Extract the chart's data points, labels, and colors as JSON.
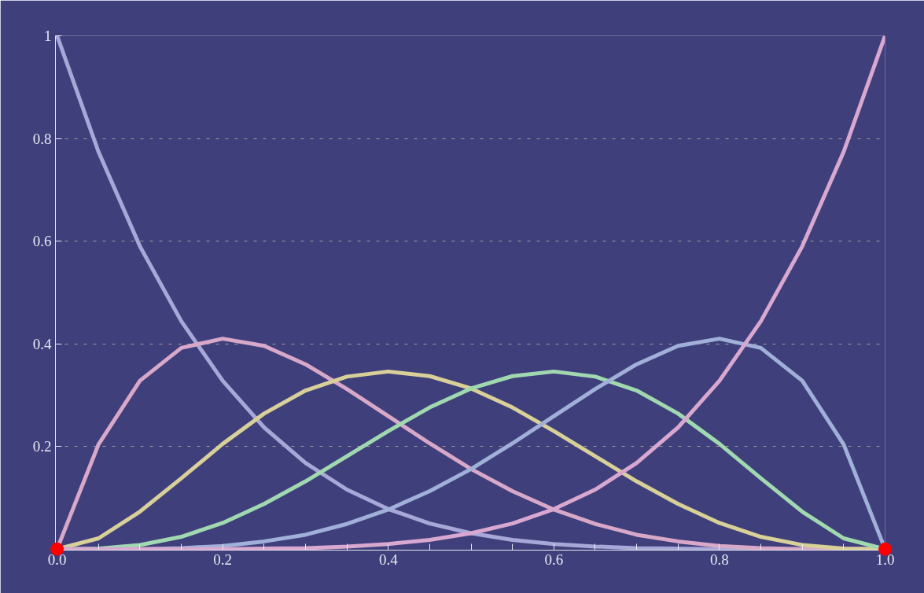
{
  "chart_data": {
    "type": "line",
    "x": [
      0,
      0.05,
      0.1,
      0.15,
      0.2,
      0.25,
      0.3,
      0.35,
      0.4,
      0.45,
      0.5,
      0.55,
      0.6,
      0.65,
      0.7,
      0.75,
      0.8,
      0.85,
      0.9,
      0.95,
      1
    ],
    "series": [
      {
        "color": "#a8a8d8",
        "values": [
          1,
          0.774,
          0.59,
          0.444,
          0.328,
          0.237,
          0.168,
          0.116,
          0.078,
          0.05,
          0.031,
          0.018,
          0.01,
          0.005,
          0.002,
          0.001,
          0,
          0,
          0,
          0,
          0
        ]
      },
      {
        "color": "#d8a8c8",
        "values": [
          0,
          0.204,
          0.328,
          0.392,
          0.41,
          0.396,
          0.36,
          0.312,
          0.259,
          0.206,
          0.156,
          0.113,
          0.077,
          0.049,
          0.028,
          0.015,
          0.006,
          0.002,
          0,
          0,
          0
        ]
      },
      {
        "color": "#d8d098",
        "values": [
          0,
          0.021,
          0.073,
          0.138,
          0.205,
          0.264,
          0.309,
          0.336,
          0.346,
          0.337,
          0.313,
          0.276,
          0.23,
          0.181,
          0.132,
          0.088,
          0.051,
          0.024,
          0.008,
          0.001,
          0
        ]
      },
      {
        "color": "#a0d8b0",
        "values": [
          0,
          0.001,
          0.008,
          0.024,
          0.051,
          0.088,
          0.132,
          0.181,
          0.23,
          0.276,
          0.313,
          0.337,
          0.346,
          0.336,
          0.309,
          0.264,
          0.205,
          0.138,
          0.073,
          0.021,
          0
        ]
      },
      {
        "color": "#a0b0d8",
        "values": [
          0,
          0,
          0,
          0.002,
          0.006,
          0.015,
          0.028,
          0.049,
          0.077,
          0.113,
          0.156,
          0.206,
          0.259,
          0.312,
          0.36,
          0.396,
          0.41,
          0.392,
          0.328,
          0.204,
          0
        ]
      },
      {
        "color": "#d8a8d0",
        "values": [
          0,
          0,
          0,
          0,
          0,
          0.001,
          0.002,
          0.005,
          0.01,
          0.018,
          0.031,
          0.05,
          0.078,
          0.116,
          0.168,
          0.237,
          0.328,
          0.444,
          0.59,
          0.774,
          1
        ]
      },
      {
        "type": "scatter",
        "marker": "circle",
        "color": "#ff0000",
        "x": [
          0,
          1
        ],
        "values": [
          0,
          0
        ]
      }
    ],
    "xlim": [
      -0.002,
      1.0
    ],
    "ylim": [
      -0.002,
      1.0
    ],
    "xticks": [
      {
        "value": 0,
        "label": "0.0"
      },
      {
        "value": 0.05,
        "label": null
      },
      {
        "value": 0.1,
        "label": null
      },
      {
        "value": 0.15,
        "label": null
      },
      {
        "value": 0.2,
        "label": "0.2"
      },
      {
        "value": 0.25,
        "label": null
      },
      {
        "value": 0.3,
        "label": null
      },
      {
        "value": 0.35,
        "label": null
      },
      {
        "value": 0.4,
        "label": "0.4"
      },
      {
        "value": 0.45,
        "label": null
      },
      {
        "value": 0.5,
        "label": null
      },
      {
        "value": 0.55,
        "label": null
      },
      {
        "value": 0.6,
        "label": "0.6"
      },
      {
        "value": 0.65,
        "label": null
      },
      {
        "value": 0.7,
        "label": null
      },
      {
        "value": 0.75,
        "label": null
      },
      {
        "value": 0.8,
        "label": "0.8"
      },
      {
        "value": 0.85,
        "label": null
      },
      {
        "value": 0.9,
        "label": null
      },
      {
        "value": 0.95,
        "label": null
      },
      {
        "value": 1,
        "label": "1.0"
      }
    ],
    "yticks": [
      0.2,
      0.4,
      0.6,
      0.8,
      1
    ],
    "grid": "y",
    "line_style": "solid"
  }
}
